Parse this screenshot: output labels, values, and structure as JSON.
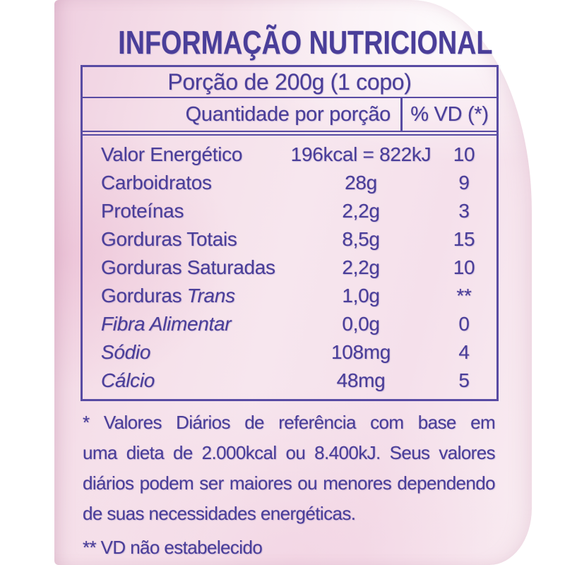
{
  "colors": {
    "ink": "#4a3e99",
    "ink_line": "#584ba3",
    "pink_base": "#f5dfe9",
    "pink_deep": "#efcfe0"
  },
  "label": {
    "title": "INFORMAÇÃO NUTRICIONAL",
    "serving": "Porção de 200g (1 copo)",
    "columns": {
      "quantity": "Quantidade por porção",
      "vd": "% VD (*)"
    },
    "rows": [
      {
        "name": "Valor Energético",
        "name_italic": "",
        "amount": "196kcal = 822kJ",
        "vd": "10"
      },
      {
        "name": "Carboidratos",
        "name_italic": "",
        "amount": "28g",
        "vd": "9"
      },
      {
        "name": "Proteínas",
        "name_italic": "",
        "amount": "2,2g",
        "vd": "3"
      },
      {
        "name": "Gorduras Totais",
        "name_italic": "",
        "amount": "8,5g",
        "vd": "15"
      },
      {
        "name": "Gorduras Saturadas",
        "name_italic": "",
        "amount": "2,2g",
        "vd": "10"
      },
      {
        "name": "Gorduras ",
        "name_italic": "Trans",
        "amount": "1,0g",
        "vd": "**"
      },
      {
        "name": "",
        "name_italic": "Fibra Alimentar",
        "amount": "0,0g",
        "vd": "0"
      },
      {
        "name": "",
        "name_italic": "Sódio",
        "amount": "108mg",
        "vd": "4"
      },
      {
        "name": "",
        "name_italic": "Cálcio",
        "amount": "48mg",
        "vd": "5"
      }
    ],
    "footnote_lines": [
      "* Valores Diários de referência com base em",
      "uma dieta de 2.000kcal ou 8.400kJ. Seus valores",
      "diários podem ser maiores ou menores dependendo",
      "de suas necessidades energéticas."
    ],
    "footnote2": "** VD não estabelecido"
  }
}
